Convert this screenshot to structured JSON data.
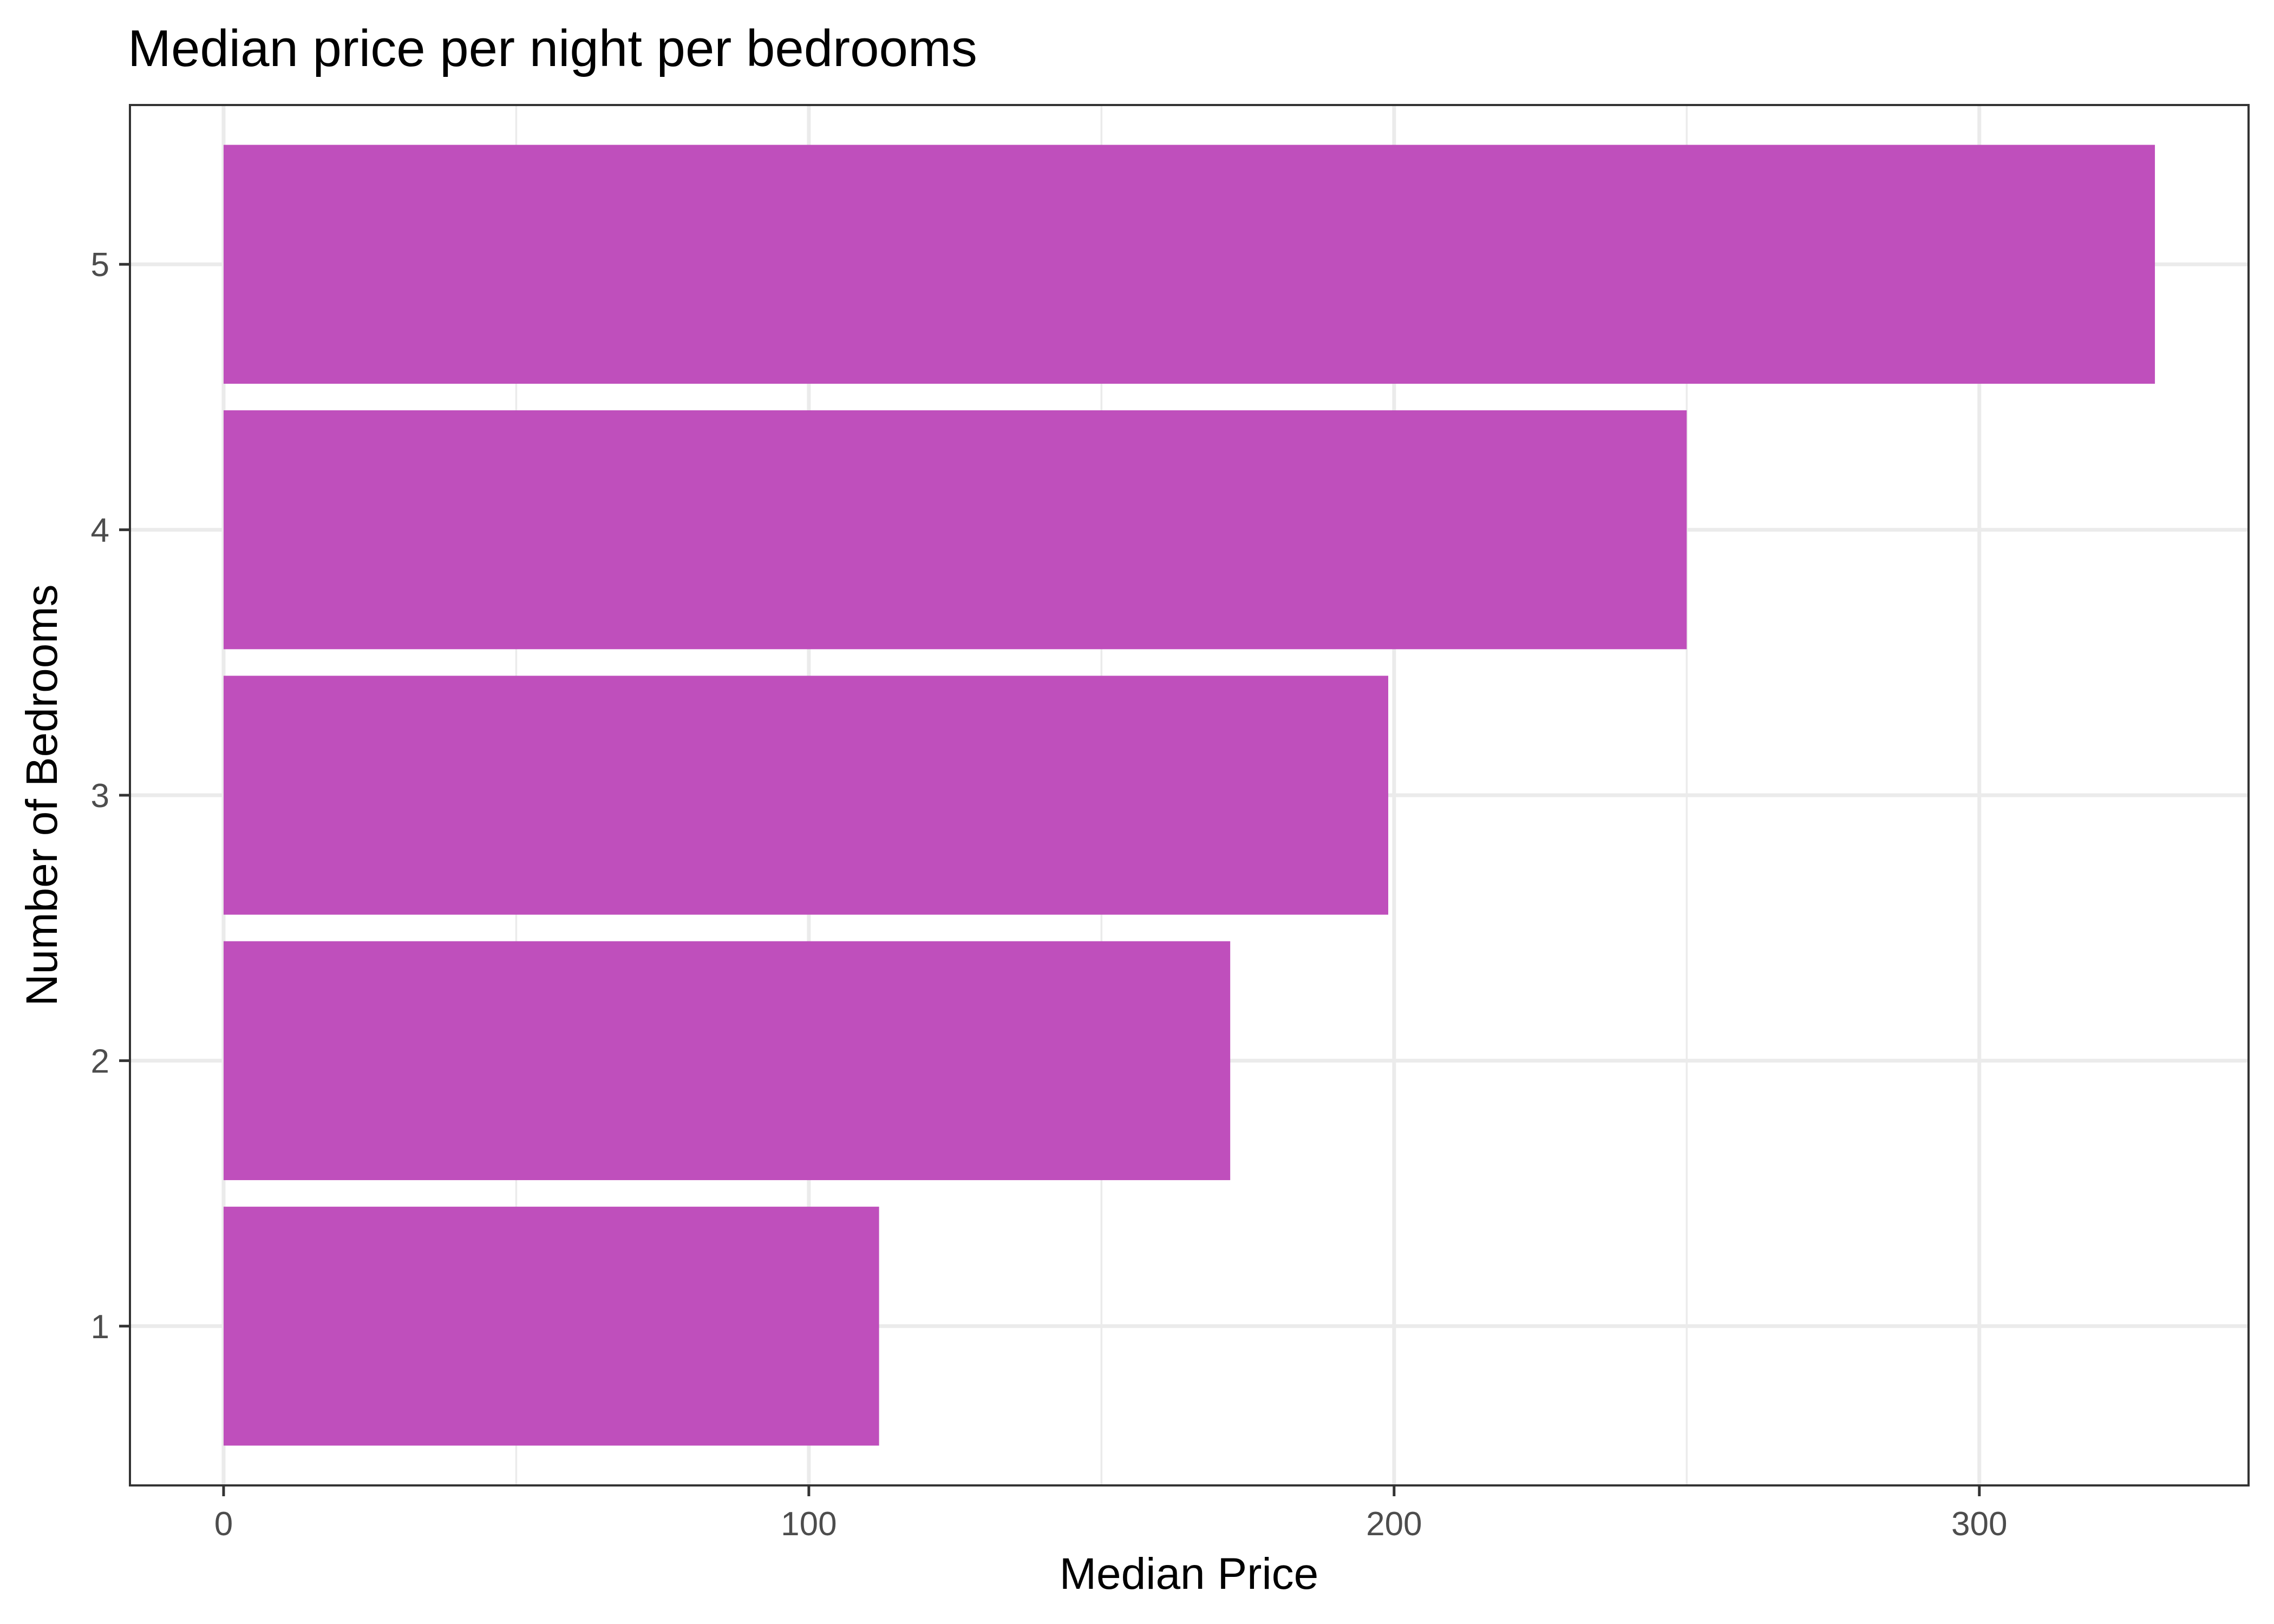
{
  "chart_data": {
    "type": "bar",
    "orientation": "horizontal",
    "title": "Median price per night per bedrooms",
    "xlabel": "Median Price",
    "ylabel": "Number of Bedrooms",
    "categories": [
      "1",
      "2",
      "3",
      "4",
      "5"
    ],
    "values": [
      112,
      172,
      199,
      250,
      330
    ],
    "xlim": [
      -16,
      346
    ],
    "xticks": [
      0,
      100,
      200,
      300
    ],
    "grid": true,
    "legend": "none",
    "bar_color": "#BF4FBC"
  }
}
